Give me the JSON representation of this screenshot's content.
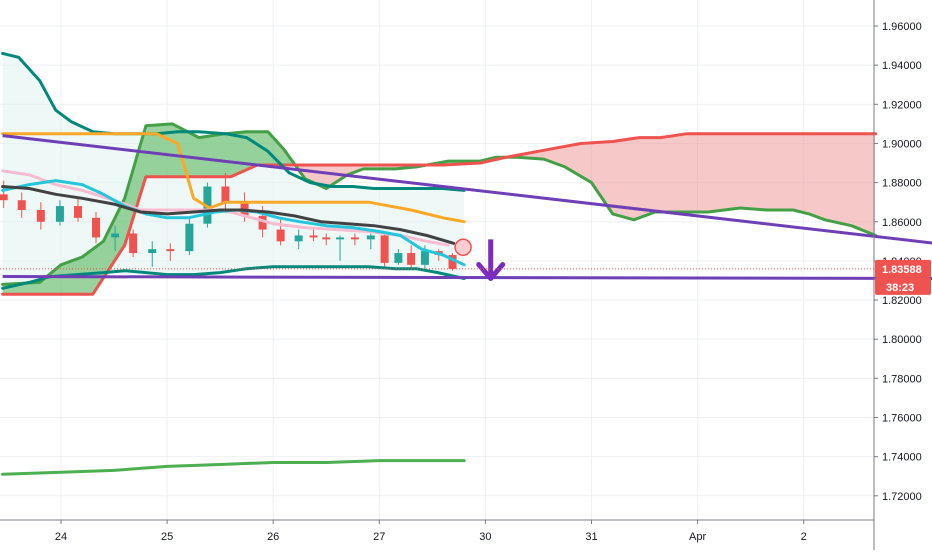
{
  "chart_data": {
    "type": "candlestick",
    "title": "",
    "xlabel": "",
    "ylabel": "",
    "ylim": [
      1.7,
      1.975
    ],
    "xlim": [
      23.45,
      32.72
    ],
    "grid": true,
    "legend": "none",
    "price_axis": {
      "ticks": [
        "1.96000",
        "1.94000",
        "1.92000",
        "1.90000",
        "1.88000",
        "1.86000",
        "1.84000",
        "1.82000",
        "1.80000",
        "1.78000",
        "1.76000",
        "1.74000",
        "1.72000"
      ],
      "tick_values": [
        1.96,
        1.94,
        1.92,
        1.9,
        1.88,
        1.86,
        1.84,
        1.82,
        1.8,
        1.78,
        1.76,
        1.74,
        1.72
      ]
    },
    "time_axis": {
      "ticks": [
        "24",
        "25",
        "26",
        "27",
        "30",
        "31",
        "Apr",
        "2"
      ],
      "tick_positions": [
        24,
        25,
        26,
        27,
        28,
        29,
        30,
        31
      ]
    },
    "current_price": {
      "label": "1.83588",
      "value": 1.8359,
      "color": "#ef5350"
    },
    "countdown": {
      "label": "38:23"
    },
    "candles": [
      {
        "t": 23.46,
        "o": 1.874,
        "h": 1.881,
        "l": 1.867,
        "c": 1.871
      },
      {
        "t": 23.63,
        "o": 1.871,
        "h": 1.875,
        "l": 1.862,
        "c": 1.866
      },
      {
        "t": 23.81,
        "o": 1.866,
        "h": 1.87,
        "l": 1.856,
        "c": 1.86
      },
      {
        "t": 23.99,
        "o": 1.86,
        "h": 1.871,
        "l": 1.858,
        "c": 1.868
      },
      {
        "t": 24.16,
        "o": 1.868,
        "h": 1.872,
        "l": 1.86,
        "c": 1.862
      },
      {
        "t": 24.33,
        "o": 1.862,
        "h": 1.865,
        "l": 1.849,
        "c": 1.852
      },
      {
        "t": 24.51,
        "o": 1.852,
        "h": 1.858,
        "l": 1.845,
        "c": 1.854
      },
      {
        "t": 24.68,
        "o": 1.854,
        "h": 1.856,
        "l": 1.842,
        "c": 1.844
      },
      {
        "t": 24.86,
        "o": 1.844,
        "h": 1.85,
        "l": 1.837,
        "c": 1.846
      },
      {
        "t": 25.03,
        "o": 1.846,
        "h": 1.849,
        "l": 1.84,
        "c": 1.845
      },
      {
        "t": 25.21,
        "o": 1.845,
        "h": 1.862,
        "l": 1.843,
        "c": 1.859
      },
      {
        "t": 25.38,
        "o": 1.859,
        "h": 1.88,
        "l": 1.857,
        "c": 1.878
      },
      {
        "t": 25.55,
        "o": 1.878,
        "h": 1.885,
        "l": 1.866,
        "c": 1.87
      },
      {
        "t": 25.73,
        "o": 1.87,
        "h": 1.875,
        "l": 1.86,
        "c": 1.863
      },
      {
        "t": 25.9,
        "o": 1.863,
        "h": 1.868,
        "l": 1.852,
        "c": 1.856
      },
      {
        "t": 26.07,
        "o": 1.856,
        "h": 1.862,
        "l": 1.848,
        "c": 1.85
      },
      {
        "t": 26.24,
        "o": 1.85,
        "h": 1.856,
        "l": 1.846,
        "c": 1.853
      },
      {
        "t": 26.38,
        "o": 1.853,
        "h": 1.856,
        "l": 1.85,
        "c": 1.852
      },
      {
        "t": 26.5,
        "o": 1.852,
        "h": 1.854,
        "l": 1.848,
        "c": 1.851
      },
      {
        "t": 26.63,
        "o": 1.851,
        "h": 1.853,
        "l": 1.84,
        "c": 1.852
      },
      {
        "t": 26.77,
        "o": 1.852,
        "h": 1.854,
        "l": 1.848,
        "c": 1.851
      },
      {
        "t": 26.92,
        "o": 1.851,
        "h": 1.854,
        "l": 1.846,
        "c": 1.853
      },
      {
        "t": 27.05,
        "o": 1.853,
        "h": 1.854,
        "l": 1.836,
        "c": 1.839
      },
      {
        "t": 27.18,
        "o": 1.839,
        "h": 1.846,
        "l": 1.838,
        "c": 1.844
      },
      {
        "t": 27.3,
        "o": 1.844,
        "h": 1.848,
        "l": 1.836,
        "c": 1.838
      },
      {
        "t": 27.43,
        "o": 1.838,
        "h": 1.848,
        "l": 1.835,
        "c": 1.845
      },
      {
        "t": 27.56,
        "o": 1.845,
        "h": 1.846,
        "l": 1.84,
        "c": 1.843
      },
      {
        "t": 27.69,
        "o": 1.843,
        "h": 1.844,
        "l": 1.835,
        "c": 1.8359
      }
    ],
    "series": [
      {
        "style": "ichimoku-span-a",
        "color": "#43a047",
        "points": [
          [
            23.45,
            1.828
          ],
          [
            23.8,
            1.829
          ],
          [
            24.0,
            1.838
          ],
          [
            24.2,
            1.842
          ],
          [
            24.4,
            1.85
          ],
          [
            24.6,
            1.872
          ],
          [
            24.8,
            1.909
          ],
          [
            25.05,
            1.91
          ],
          [
            25.3,
            1.903
          ],
          [
            25.55,
            1.905
          ],
          [
            25.75,
            1.906
          ],
          [
            25.95,
            1.906
          ],
          [
            26.1,
            1.897
          ],
          [
            26.3,
            1.882
          ],
          [
            26.5,
            1.877
          ],
          [
            26.7,
            1.884
          ],
          [
            26.85,
            1.887
          ],
          [
            27.15,
            1.887
          ],
          [
            27.35,
            1.888
          ],
          [
            27.65,
            1.891
          ],
          [
            27.95,
            1.891
          ],
          [
            28.1,
            1.893
          ],
          [
            28.3,
            1.893
          ],
          [
            28.55,
            1.892
          ],
          [
            28.75,
            1.888
          ],
          [
            29.0,
            1.88
          ],
          [
            29.2,
            1.864
          ],
          [
            29.4,
            1.861
          ],
          [
            29.6,
            1.865
          ],
          [
            29.85,
            1.865
          ],
          [
            30.1,
            1.865
          ],
          [
            30.4,
            1.867
          ],
          [
            30.65,
            1.866
          ],
          [
            30.9,
            1.866
          ],
          [
            31.05,
            1.864
          ],
          [
            31.2,
            1.861
          ],
          [
            31.45,
            1.858
          ],
          [
            31.68,
            1.853
          ]
        ]
      },
      {
        "style": "ichimoku-span-b",
        "color": "#ef5350",
        "points": [
          [
            23.45,
            1.823
          ],
          [
            24.3,
            1.823
          ],
          [
            24.6,
            1.848
          ],
          [
            24.8,
            1.883
          ],
          [
            25.6,
            1.883
          ],
          [
            25.85,
            1.889
          ],
          [
            26.0,
            1.889
          ],
          [
            26.5,
            1.889
          ],
          [
            27.0,
            1.889
          ],
          [
            27.6,
            1.889
          ],
          [
            27.95,
            1.89
          ],
          [
            28.2,
            1.893
          ],
          [
            28.6,
            1.897
          ],
          [
            28.9,
            1.9
          ],
          [
            29.2,
            1.901
          ],
          [
            29.45,
            1.903
          ],
          [
            29.65,
            1.903
          ],
          [
            29.9,
            1.905
          ],
          [
            30.0,
            1.905
          ],
          [
            31.68,
            1.905
          ]
        ]
      },
      {
        "style": "line",
        "color": "#00897b",
        "points": [
          [
            23.45,
            1.946
          ],
          [
            23.6,
            1.944
          ],
          [
            23.8,
            1.932
          ],
          [
            23.95,
            1.917
          ],
          [
            24.1,
            1.911
          ],
          [
            24.3,
            1.906
          ],
          [
            24.5,
            1.905
          ],
          [
            24.7,
            1.905
          ],
          [
            24.9,
            1.905
          ],
          [
            25.1,
            1.906
          ],
          [
            25.3,
            1.906
          ],
          [
            25.55,
            1.905
          ],
          [
            25.75,
            1.903
          ],
          [
            25.95,
            1.896
          ],
          [
            26.15,
            1.885
          ],
          [
            26.35,
            1.88
          ],
          [
            26.55,
            1.878
          ],
          [
            26.75,
            1.878
          ],
          [
            26.95,
            1.877
          ],
          [
            27.15,
            1.877
          ],
          [
            27.35,
            1.877
          ],
          [
            27.6,
            1.877
          ],
          [
            27.8,
            1.876
          ]
        ]
      },
      {
        "style": "line",
        "color": "#00897b",
        "points": [
          [
            23.45,
            1.826
          ],
          [
            23.7,
            1.829
          ],
          [
            23.9,
            1.832
          ],
          [
            24.15,
            1.833
          ],
          [
            24.4,
            1.834
          ],
          [
            24.6,
            1.835
          ],
          [
            24.8,
            1.834
          ],
          [
            25.0,
            1.833
          ],
          [
            25.25,
            1.833
          ],
          [
            25.5,
            1.834
          ],
          [
            25.75,
            1.836
          ],
          [
            26.0,
            1.837
          ],
          [
            26.3,
            1.837
          ],
          [
            26.6,
            1.837
          ],
          [
            26.9,
            1.837
          ],
          [
            27.15,
            1.836
          ],
          [
            27.35,
            1.836
          ],
          [
            27.55,
            1.834
          ],
          [
            27.8,
            1.831
          ]
        ]
      },
      {
        "style": "line",
        "color": "#ffa726",
        "points": [
          [
            23.45,
            1.905
          ],
          [
            24.3,
            1.905
          ],
          [
            24.9,
            1.905
          ],
          [
            25.1,
            1.9
          ],
          [
            25.25,
            1.872
          ],
          [
            25.4,
            1.867
          ],
          [
            25.55,
            1.87
          ],
          [
            25.75,
            1.87
          ],
          [
            26.0,
            1.87
          ],
          [
            26.5,
            1.87
          ],
          [
            26.9,
            1.87
          ],
          [
            27.3,
            1.866
          ],
          [
            27.6,
            1.862
          ],
          [
            27.8,
            1.86
          ]
        ]
      },
      {
        "style": "line",
        "color": "#f8bbd0",
        "points": [
          [
            23.45,
            1.886
          ],
          [
            23.7,
            1.884
          ],
          [
            23.95,
            1.879
          ],
          [
            24.2,
            1.876
          ],
          [
            24.5,
            1.871
          ],
          [
            24.75,
            1.866
          ],
          [
            25.0,
            1.866
          ],
          [
            25.2,
            1.866
          ],
          [
            25.4,
            1.866
          ],
          [
            25.6,
            1.865
          ],
          [
            25.8,
            1.862
          ],
          [
            26.0,
            1.859
          ],
          [
            26.3,
            1.857
          ],
          [
            26.6,
            1.856
          ],
          [
            26.9,
            1.855
          ],
          [
            27.2,
            1.853
          ],
          [
            27.45,
            1.85
          ],
          [
            27.65,
            1.848
          ]
        ]
      },
      {
        "style": "line",
        "color": "#26c6da",
        "points": [
          [
            23.45,
            1.876
          ],
          [
            23.7,
            1.879
          ],
          [
            23.95,
            1.881
          ],
          [
            24.2,
            1.879
          ],
          [
            24.4,
            1.874
          ],
          [
            24.6,
            1.868
          ],
          [
            24.8,
            1.864
          ],
          [
            25.0,
            1.862
          ],
          [
            25.2,
            1.862
          ],
          [
            25.45,
            1.865
          ],
          [
            25.65,
            1.866
          ],
          [
            25.85,
            1.865
          ],
          [
            26.05,
            1.862
          ],
          [
            26.25,
            1.86
          ],
          [
            26.5,
            1.858
          ],
          [
            26.75,
            1.857
          ],
          [
            27.0,
            1.855
          ],
          [
            27.2,
            1.853
          ],
          [
            27.4,
            1.846
          ],
          [
            27.6,
            1.843
          ],
          [
            27.8,
            1.838
          ]
        ]
      },
      {
        "style": "line",
        "color": "#424242",
        "points": [
          [
            23.45,
            1.878
          ],
          [
            23.7,
            1.877
          ],
          [
            23.95,
            1.874
          ],
          [
            24.2,
            1.872
          ],
          [
            24.5,
            1.869
          ],
          [
            24.75,
            1.865
          ],
          [
            25.0,
            1.864
          ],
          [
            25.25,
            1.865
          ],
          [
            25.5,
            1.866
          ],
          [
            25.7,
            1.866
          ],
          [
            25.95,
            1.865
          ],
          [
            26.2,
            1.863
          ],
          [
            26.45,
            1.86
          ],
          [
            26.7,
            1.859
          ],
          [
            26.95,
            1.858
          ],
          [
            27.2,
            1.856
          ],
          [
            27.45,
            1.853
          ],
          [
            27.7,
            1.849
          ]
        ]
      },
      {
        "style": "line",
        "color": "#4caf50",
        "points": [
          [
            23.45,
            1.731
          ],
          [
            24.0,
            1.732
          ],
          [
            24.5,
            1.733
          ],
          [
            25.0,
            1.735
          ],
          [
            25.5,
            1.736
          ],
          [
            26.0,
            1.737
          ],
          [
            26.5,
            1.737
          ],
          [
            27.0,
            1.738
          ],
          [
            27.5,
            1.738
          ],
          [
            27.8,
            1.738
          ]
        ]
      }
    ],
    "trendlines": [
      {
        "color": "#6e3fb5",
        "from": [
          23.45,
          1.904
        ],
        "to": [
          32.55,
          1.847
        ]
      },
      {
        "color": "#6e3fb5",
        "from": [
          23.45,
          1.832
        ],
        "to": [
          32.55,
          1.831
        ]
      }
    ],
    "annotations": [
      {
        "type": "arrow-down",
        "color": "#7b2cbf",
        "t": 28.05,
        "from": 1.851,
        "to": 1.831
      },
      {
        "type": "circle-marker",
        "color": "#ef5350",
        "t": 27.79,
        "value": 1.847
      }
    ],
    "background_channel": {
      "color": "#e0f2f1",
      "from_t": 23.45,
      "to_t": 27.8,
      "top": 1.946,
      "bottom": 1.828
    }
  }
}
